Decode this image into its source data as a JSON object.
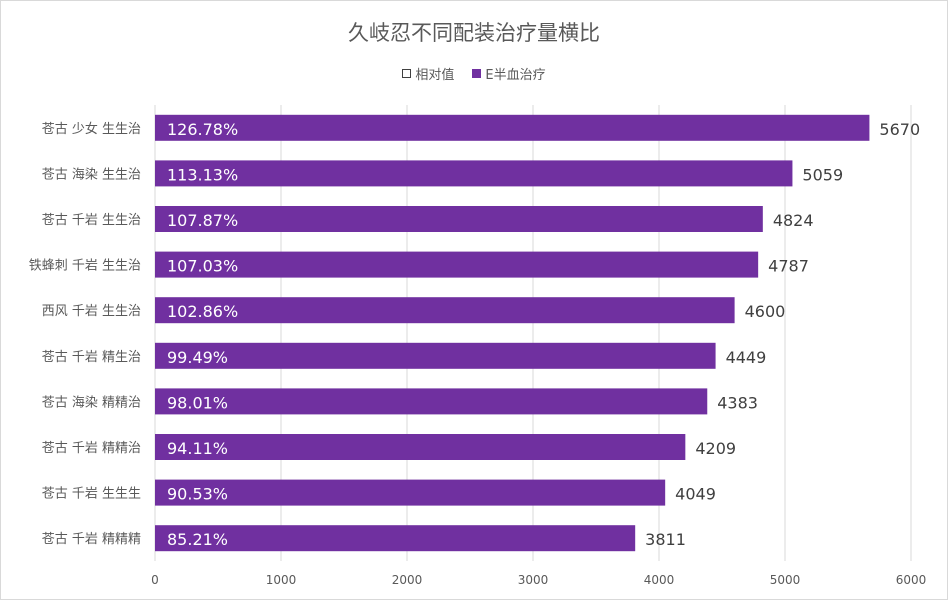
{
  "chart_data": {
    "type": "bar",
    "orientation": "horizontal",
    "title": "久岐忍不同配装治疗量横比",
    "categories": [
      "苍古 少女 生生治",
      "苍古 海染 生生治",
      "苍古 千岩 生生治",
      "铁蜂刺 千岩 生生治",
      "西风 千岩 生生治",
      "苍古 千岩 精生治",
      "苍古 海染 精精治",
      "苍古 千岩 精精治",
      "苍古 千岩 生生生",
      "苍古 千岩 精精精"
    ],
    "series": [
      {
        "name": "相对值",
        "values": [
          "126.78%",
          "113.13%",
          "107.87%",
          "107.03%",
          "102.86%",
          "99.49%",
          "98.01%",
          "94.11%",
          "90.53%",
          "85.21%"
        ]
      },
      {
        "name": "E半血治疗",
        "values": [
          5670,
          5059,
          4824,
          4787,
          4600,
          4449,
          4383,
          4209,
          4049,
          3811
        ]
      }
    ],
    "xlim": [
      0,
      6000
    ],
    "x_ticks": [
      0,
      1000,
      2000,
      3000,
      4000,
      5000,
      6000
    ],
    "grid": true,
    "legend_position": "top"
  },
  "colors": {
    "bar": "#7030a0",
    "grid": "#d9d9d9",
    "text": "#595959",
    "value_label": "#404040",
    "inner_label": "#ffffff"
  }
}
